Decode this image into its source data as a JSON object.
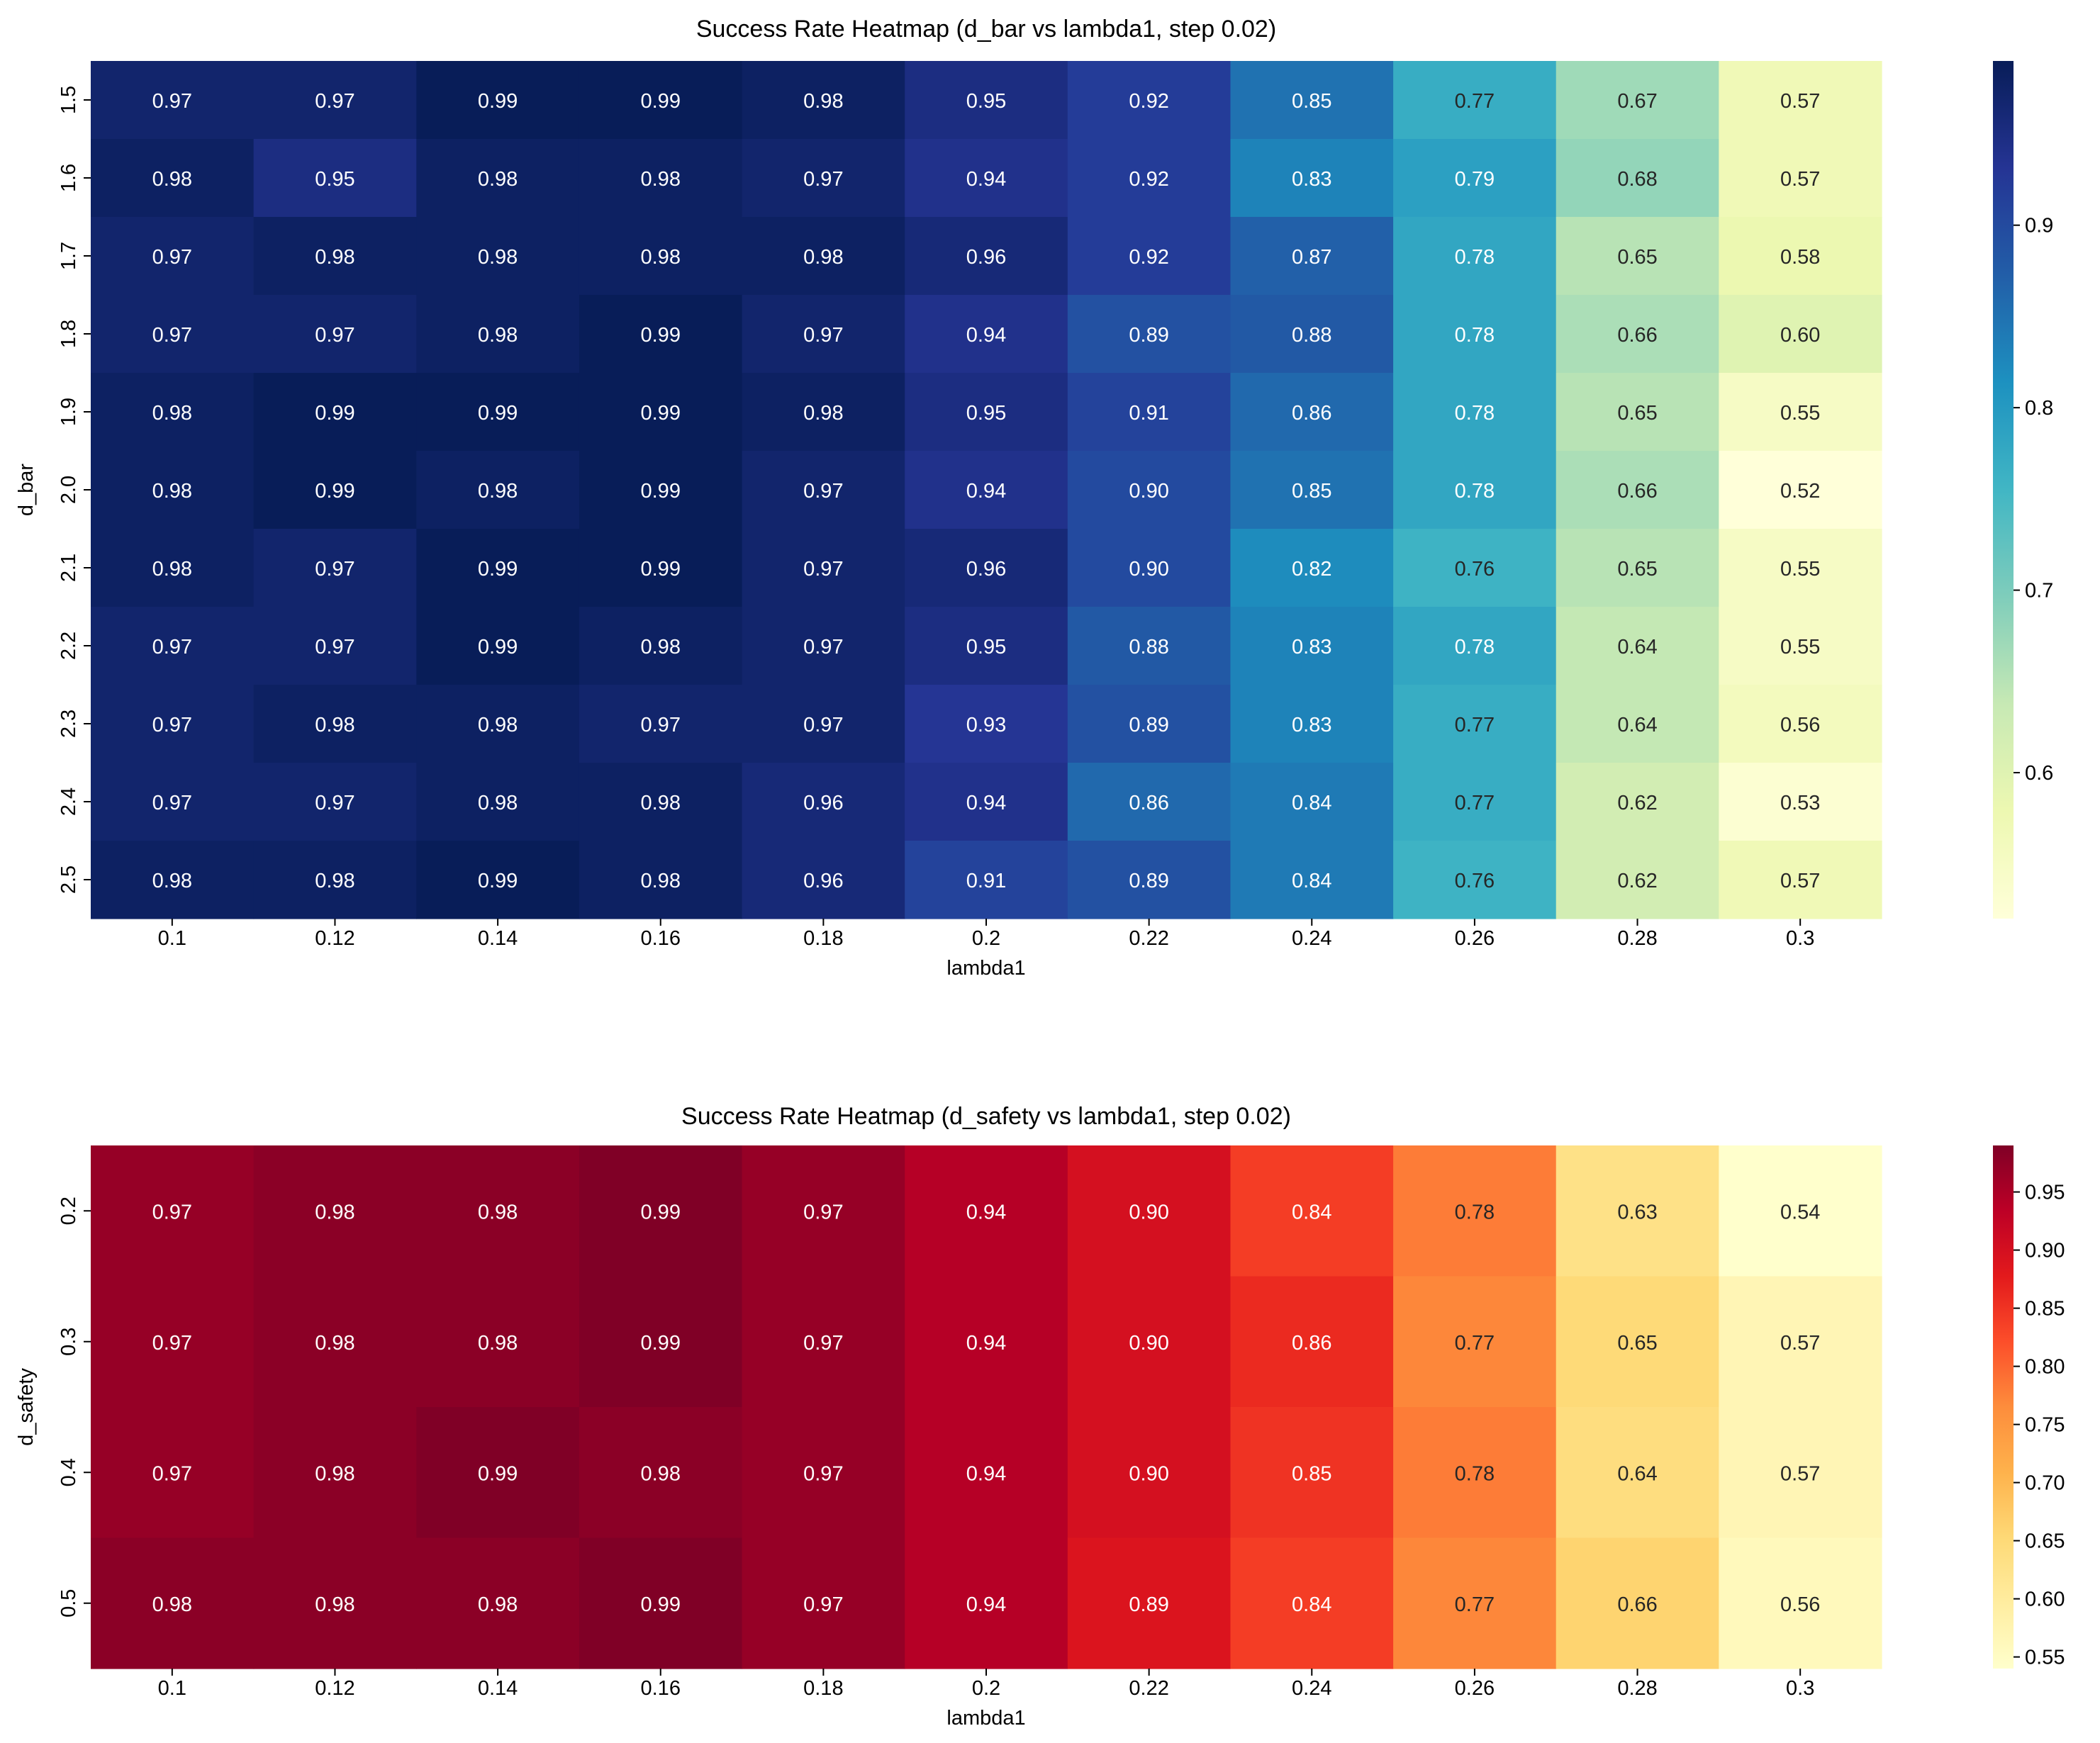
{
  "chart_data": [
    {
      "type": "heatmap",
      "title": "Success Rate Heatmap (d_bar vs lambda1, step 0.02)",
      "xlabel": "lambda1",
      "ylabel": "d_bar",
      "x": [
        "0.1",
        "0.12",
        "0.14",
        "0.16",
        "0.18",
        "0.2",
        "0.22",
        "0.24",
        "0.26",
        "0.28",
        "0.3"
      ],
      "y": [
        "1.5",
        "1.6",
        "1.7",
        "1.8",
        "1.9",
        "2.0",
        "2.1",
        "2.2",
        "2.3",
        "2.4",
        "2.5"
      ],
      "values": [
        [
          0.97,
          0.97,
          0.99,
          0.99,
          0.98,
          0.95,
          0.92,
          0.85,
          0.77,
          0.67,
          0.57
        ],
        [
          0.98,
          0.95,
          0.98,
          0.98,
          0.97,
          0.94,
          0.92,
          0.83,
          0.79,
          0.68,
          0.57
        ],
        [
          0.97,
          0.98,
          0.98,
          0.98,
          0.98,
          0.96,
          0.92,
          0.87,
          0.78,
          0.65,
          0.58
        ],
        [
          0.97,
          0.97,
          0.98,
          0.99,
          0.97,
          0.94,
          0.89,
          0.88,
          0.78,
          0.66,
          0.6
        ],
        [
          0.98,
          0.99,
          0.99,
          0.99,
          0.98,
          0.95,
          0.91,
          0.86,
          0.78,
          0.65,
          0.55
        ],
        [
          0.98,
          0.99,
          0.98,
          0.99,
          0.97,
          0.94,
          0.9,
          0.85,
          0.78,
          0.66,
          0.52
        ],
        [
          0.98,
          0.97,
          0.99,
          0.99,
          0.97,
          0.96,
          0.9,
          0.82,
          0.76,
          0.65,
          0.55
        ],
        [
          0.97,
          0.97,
          0.99,
          0.98,
          0.97,
          0.95,
          0.88,
          0.83,
          0.78,
          0.64,
          0.55
        ],
        [
          0.97,
          0.98,
          0.98,
          0.97,
          0.97,
          0.93,
          0.89,
          0.83,
          0.77,
          0.64,
          0.56
        ],
        [
          0.97,
          0.97,
          0.98,
          0.98,
          0.96,
          0.94,
          0.86,
          0.84,
          0.77,
          0.62,
          0.53
        ],
        [
          0.98,
          0.98,
          0.99,
          0.98,
          0.96,
          0.91,
          0.89,
          0.84,
          0.76,
          0.62,
          0.57
        ]
      ],
      "colormap": "YlGnBu",
      "colors": [
        "#ffffd9",
        "#edf8b1",
        "#c7e9b4",
        "#7fcdbb",
        "#41b6c4",
        "#1d91c0",
        "#225ea8",
        "#253494",
        "#081d58"
      ],
      "vmin": 0.52,
      "vmax": 0.99,
      "colorbar_ticks": [
        "0.6",
        "0.7",
        "0.8",
        "0.9"
      ]
    },
    {
      "type": "heatmap",
      "title": "Success Rate Heatmap (d_safety vs lambda1, step 0.02)",
      "xlabel": "lambda1",
      "ylabel": "d_safety",
      "x": [
        "0.1",
        "0.12",
        "0.14",
        "0.16",
        "0.18",
        "0.2",
        "0.22",
        "0.24",
        "0.26",
        "0.28",
        "0.3"
      ],
      "y": [
        "0.2",
        "0.3",
        "0.4",
        "0.5"
      ],
      "values": [
        [
          0.97,
          0.98,
          0.98,
          0.99,
          0.97,
          0.94,
          0.9,
          0.84,
          0.78,
          0.63,
          0.54
        ],
        [
          0.97,
          0.98,
          0.98,
          0.99,
          0.97,
          0.94,
          0.9,
          0.86,
          0.77,
          0.65,
          0.57
        ],
        [
          0.97,
          0.98,
          0.99,
          0.98,
          0.97,
          0.94,
          0.9,
          0.85,
          0.78,
          0.64,
          0.57
        ],
        [
          0.98,
          0.98,
          0.98,
          0.99,
          0.97,
          0.94,
          0.89,
          0.84,
          0.77,
          0.66,
          0.56
        ]
      ],
      "colormap": "YlOrRd",
      "colors": [
        "#ffffcc",
        "#ffeda0",
        "#fed976",
        "#feb24c",
        "#fd8d3c",
        "#fc4e2a",
        "#e31a1c",
        "#bd0026",
        "#800026"
      ],
      "vmin": 0.54,
      "vmax": 0.99,
      "colorbar_ticks": [
        "0.55",
        "0.60",
        "0.65",
        "0.70",
        "0.75",
        "0.80",
        "0.85",
        "0.90",
        "0.95"
      ]
    }
  ]
}
